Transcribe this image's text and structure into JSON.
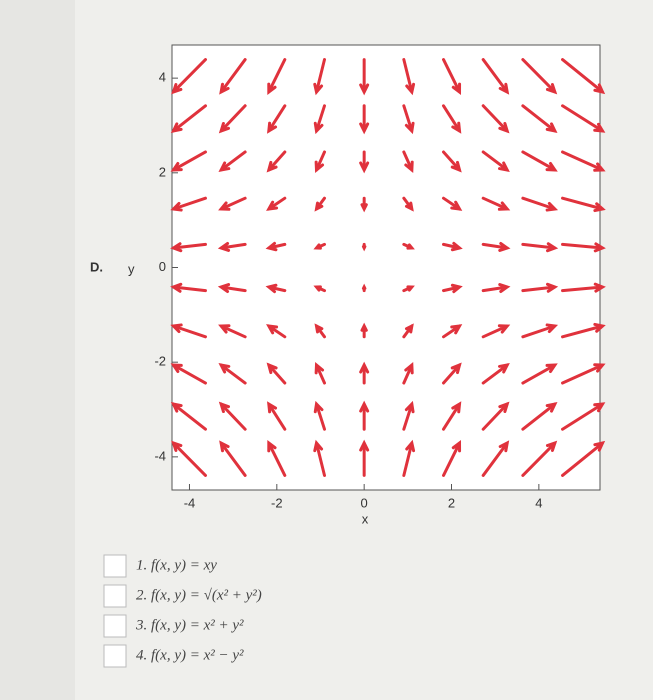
{
  "chart_data": {
    "type": "quiver",
    "panel_label": "D.",
    "ylabel": "y",
    "xlabel": "x",
    "x": [
      -4,
      -3,
      -2,
      -1,
      0,
      1,
      2,
      3,
      4,
      5
    ],
    "y": [
      4.05,
      3.15,
      2.25,
      1.35,
      0.45,
      -0.45,
      -1.35,
      -2.25,
      -3.15,
      -4.05
    ],
    "u": [
      -4,
      -3,
      -2,
      -1,
      0,
      1,
      2,
      3,
      4,
      5
    ],
    "v": [
      -4.05,
      -3.15,
      -2.25,
      -1.35,
      -0.45,
      0.45,
      1.35,
      2.25,
      3.15,
      4.05
    ],
    "color": "#e0323c",
    "xlim": [
      -4.4,
      5.4
    ],
    "ylim": [
      -4.7,
      4.7
    ],
    "xticks": [
      -4,
      -2,
      0,
      2,
      4
    ],
    "yticks": [
      -4,
      -2,
      0,
      2,
      4
    ]
  },
  "options": [
    "1. f(x, y) = xy",
    "2. f(x, y) = √(x² + y²)",
    "3. f(x, y) = x² + y²",
    "4. f(x, y) = x² − y²"
  ]
}
